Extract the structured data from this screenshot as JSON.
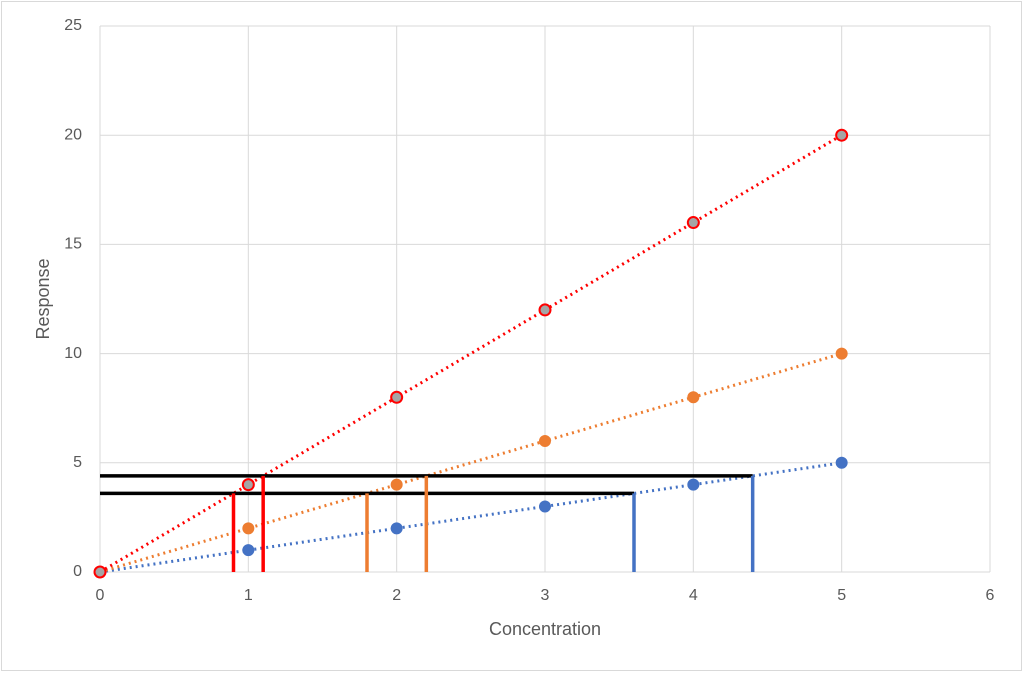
{
  "chart_data": {
    "type": "scatter",
    "xlabel": "Concentration",
    "ylabel": "Response",
    "xlim": [
      0,
      6
    ],
    "xticks": [
      0,
      1,
      2,
      3,
      4,
      5,
      6
    ],
    "ylim": [
      0,
      25
    ],
    "yticks": [
      0,
      5,
      10,
      15,
      20,
      25
    ],
    "grid": true,
    "series": [
      {
        "color": "#4472c4",
        "x": [
          0,
          1,
          2,
          3,
          4,
          5
        ],
        "values": [
          0,
          1,
          2,
          3,
          4,
          5
        ]
      },
      {
        "color": "#ed7d31",
        "x": [
          0,
          1,
          2,
          3,
          4,
          5
        ],
        "values": [
          0,
          2,
          4,
          6,
          8,
          10
        ]
      },
      {
        "color": "#ff0000",
        "x": [
          0,
          1,
          2,
          3,
          4,
          5
        ],
        "values": [
          0,
          4,
          8,
          12,
          16,
          20
        ]
      }
    ],
    "guides": [
      {
        "color": "#000000",
        "x": [
          0,
          4.4
        ],
        "values": [
          4.4,
          4.4
        ]
      },
      {
        "color": "#000000",
        "x": [
          0,
          3.6
        ],
        "values": [
          3.6,
          3.6
        ]
      },
      {
        "color": "#ff0000",
        "x": [
          0.9,
          0.9
        ],
        "values": [
          0,
          3.6
        ]
      },
      {
        "color": "#ff0000",
        "x": [
          1.1,
          1.1
        ],
        "values": [
          0,
          4.4
        ]
      },
      {
        "color": "#ed7d31",
        "x": [
          1.8,
          1.8
        ],
        "values": [
          0,
          3.6
        ]
      },
      {
        "color": "#ed7d31",
        "x": [
          2.2,
          2.2
        ],
        "values": [
          0,
          4.4
        ]
      },
      {
        "color": "#4472c4",
        "x": [
          3.6,
          3.6
        ],
        "values": [
          0,
          3.6
        ]
      },
      {
        "color": "#4472c4",
        "x": [
          4.4,
          4.4
        ],
        "values": [
          0,
          4.4
        ]
      }
    ]
  }
}
